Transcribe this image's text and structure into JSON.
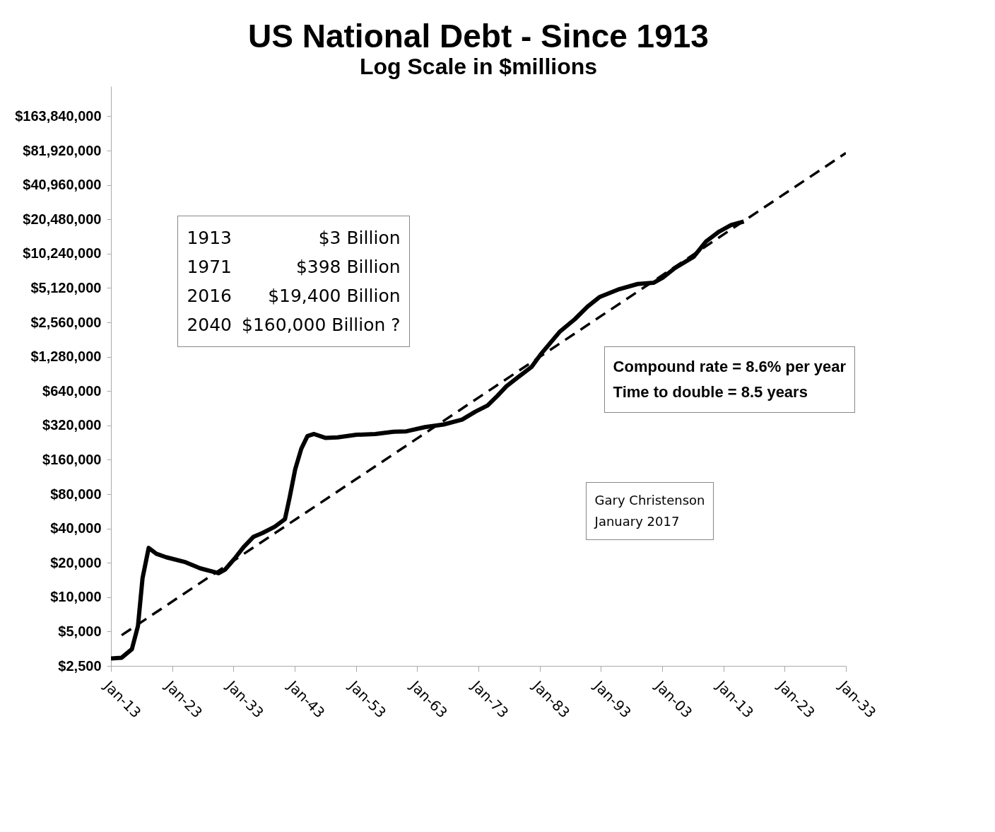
{
  "chart_data": {
    "type": "line",
    "title": "US National Debt - Since 1913",
    "subtitle": "Log Scale in $millions",
    "log": "y",
    "grid": false,
    "xlim": [
      "1913-01",
      "2033-01"
    ],
    "xticks": [
      {
        "value": "1913-01",
        "label": "Jan-13"
      },
      {
        "value": "1923-01",
        "label": "Jan-23"
      },
      {
        "value": "1933-01",
        "label": "Jan-33"
      },
      {
        "value": "1943-01",
        "label": "Jan-43"
      },
      {
        "value": "1953-01",
        "label": "Jan-53"
      },
      {
        "value": "1963-01",
        "label": "Jan-63"
      },
      {
        "value": "1973-01",
        "label": "Jan-73"
      },
      {
        "value": "1983-01",
        "label": "Jan-83"
      },
      {
        "value": "1993-01",
        "label": "Jan-93"
      },
      {
        "value": "2003-01",
        "label": "Jan-03"
      },
      {
        "value": "2013-01",
        "label": "Jan-13"
      },
      {
        "value": "2023-01",
        "label": "Jan-23"
      },
      {
        "value": "2033-01",
        "label": "Jan-33"
      }
    ],
    "ylim": [
      2500,
      300000000
    ],
    "yticks": [
      {
        "value": 2500,
        "label": "$2,500"
      },
      {
        "value": 5000,
        "label": "$5,000"
      },
      {
        "value": 10000,
        "label": "$10,000"
      },
      {
        "value": 20000,
        "label": "$20,000"
      },
      {
        "value": 40000,
        "label": "$40,000"
      },
      {
        "value": 80000,
        "label": "$80,000"
      },
      {
        "value": 160000,
        "label": "$160,000"
      },
      {
        "value": 320000,
        "label": "$320,000"
      },
      {
        "value": 640000,
        "label": "$640,000"
      },
      {
        "value": 1280000,
        "label": "$1,280,000"
      },
      {
        "value": 2560000,
        "label": "$2,560,000"
      },
      {
        "value": 5120000,
        "label": "$5,120,000"
      },
      {
        "value": 10240000,
        "label": "$10,240,000"
      },
      {
        "value": 20480000,
        "label": "$20,480,000"
      },
      {
        "value": 40960000,
        "label": "$40,960,000"
      },
      {
        "value": 81920000,
        "label": "$81,920,000"
      },
      {
        "value": 163840000,
        "label": "$163,840,000"
      }
    ],
    "series": [
      {
        "color": "#000000",
        "line_style": "solid",
        "x": [
          "1913-01",
          "1914-10",
          "1916-06",
          "1917-06",
          "1918-03",
          "1919-03",
          "1920-06",
          "1922-01",
          "1925-01",
          "1927-08",
          "1930-08",
          "1931-09",
          "1933-03",
          "1934-09",
          "1936-04",
          "1937-10",
          "1939-10",
          "1941-06",
          "1942-03",
          "1943-02",
          "1944-02",
          "1945-02",
          "1946-03",
          "1948-01",
          "1950-01",
          "1953-02",
          "1956-03",
          "1959-03",
          "1961-04",
          "1964-04",
          "1967-05",
          "1970-05",
          "1972-07",
          "1974-07",
          "1976-02",
          "1977-08",
          "1979-08",
          "1981-09",
          "1983-03",
          "1986-04",
          "1988-10",
          "1990-11",
          "1992-11",
          "1996-01",
          "1999-01",
          "2001-08",
          "2003-02",
          "2005-02",
          "2008-03",
          "2010-03",
          "2012-04",
          "2014-04",
          "2016-05"
        ],
        "values": [
          2900,
          2950,
          3500,
          5600,
          14700,
          27000,
          24000,
          22400,
          20400,
          17900,
          16200,
          17500,
          21700,
          27500,
          33700,
          36500,
          41400,
          48300,
          74000,
          132000,
          200000,
          258000,
          269000,
          249000,
          251000,
          265000,
          269000,
          282000,
          284000,
          309000,
          326000,
          360000,
          422000,
          478000,
          580000,
          705000,
          856000,
          1040000,
          1340000,
          2110000,
          2730000,
          3520000,
          4280000,
          5000000,
          5550000,
          5690000,
          6300000,
          7650000,
          9630000,
          13100000,
          15900000,
          18200000,
          19600000
        ]
      },
      {
        "type": "line",
        "color": "#000000",
        "line_style": "dashed",
        "x": [
          "1914-10",
          "2033-01"
        ],
        "values": [
          4640,
          78000000
        ]
      }
    ],
    "annotations": [
      "1913 $3 Billion",
      "1971 $398 Billion",
      "2016 $19,400 Billion",
      "2040 $160,000 Billion ?",
      "Compound rate = 8.6% per year",
      "Time to double = 8.5 years",
      "Gary Christenson",
      "January 2017"
    ]
  }
}
